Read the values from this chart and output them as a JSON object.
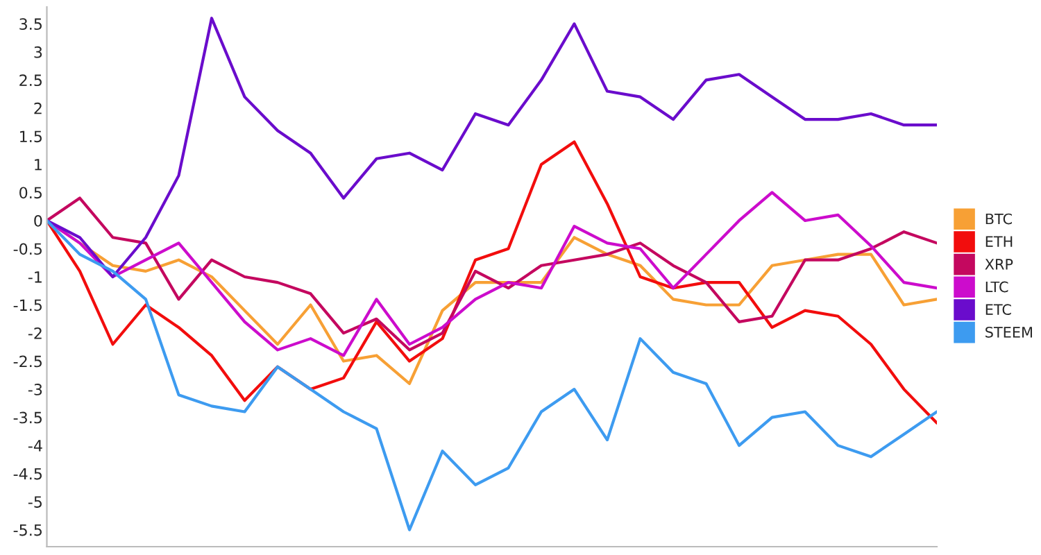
{
  "chart_data": {
    "type": "line",
    "categories": [
      null,
      null,
      null,
      null,
      null,
      null,
      null,
      null,
      null,
      null,
      null,
      null,
      null,
      null,
      null,
      null,
      null,
      null,
      null,
      null,
      null,
      null,
      null,
      null,
      null,
      null,
      null,
      null
    ],
    "series": [
      {
        "name": "BTC",
        "color": "#f7a035",
        "values": [
          0,
          -0.4,
          -0.8,
          -0.9,
          -0.7,
          -1.0,
          -1.6,
          -2.2,
          -1.5,
          -2.5,
          -2.4,
          -2.9,
          -1.6,
          -1.1,
          -1.1,
          -1.1,
          -0.3,
          -0.6,
          -0.8,
          -1.4,
          -1.5,
          -1.5,
          -0.8,
          -0.7,
          -0.6,
          -0.6,
          -1.5,
          -1.4
        ]
      },
      {
        "name": "ETH",
        "color": "#f20d0d",
        "values": [
          0,
          -0.9,
          -2.2,
          -1.5,
          -1.9,
          -2.4,
          -3.2,
          -2.6,
          -3.0,
          -2.8,
          -1.8,
          -2.5,
          -2.1,
          -0.7,
          -0.5,
          1.0,
          1.4,
          0.3,
          -1.0,
          -1.2,
          -1.1,
          -1.1,
          -1.9,
          -1.6,
          -1.7,
          -2.2,
          -3.0,
          -3.6
        ]
      },
      {
        "name": "XRP",
        "color": "#c4085f",
        "values": [
          0,
          0.4,
          -0.3,
          -0.4,
          -1.4,
          -0.7,
          -1.0,
          -1.1,
          -1.3,
          -2.0,
          -1.75,
          -2.3,
          -2.0,
          -0.9,
          -1.2,
          -0.8,
          -0.7,
          -0.6,
          -0.4,
          -0.8,
          -1.1,
          -1.8,
          -1.7,
          -0.7,
          -0.7,
          -0.5,
          -0.2,
          -0.4
        ]
      },
      {
        "name": "LTC",
        "color": "#cc0ccc",
        "values": [
          0,
          -0.4,
          -1.0,
          -0.7,
          -0.4,
          -1.1,
          -1.8,
          -2.3,
          -2.1,
          -2.4,
          -1.4,
          -2.2,
          -1.9,
          -1.4,
          -1.1,
          -1.2,
          -0.1,
          -0.4,
          -0.5,
          -1.2,
          -0.6,
          0,
          0.5,
          0,
          0.1,
          -0.45,
          -1.1,
          -1.2
        ]
      },
      {
        "name": "ETC",
        "color": "#6a0ccc",
        "values": [
          0,
          -0.3,
          -1.0,
          -0.3,
          0.8,
          3.6,
          2.2,
          1.6,
          1.2,
          0.4,
          1.1,
          1.2,
          0.9,
          1.9,
          1.7,
          2.5,
          3.5,
          2.3,
          2.2,
          1.8,
          2.5,
          2.6,
          2.2,
          1.8,
          1.8,
          1.9,
          1.7,
          1.7
        ]
      },
      {
        "name": "STEEM",
        "color": "#3d9bf0",
        "values": [
          0,
          -0.6,
          -0.9,
          -1.4,
          -3.1,
          -3.3,
          -3.4,
          -2.6,
          -3.0,
          -3.4,
          -3.7,
          -5.5,
          -4.1,
          -4.7,
          -4.4,
          -3.4,
          -3.0,
          -3.9,
          -2.1,
          -2.7,
          -2.9,
          -4.0,
          -3.5,
          -3.4,
          -4.0,
          -4.2,
          -3.8,
          -3.4
        ]
      }
    ],
    "ylim": [
      -5.8,
      3.8
    ],
    "yticks": [
      -5.5,
      -5,
      -4.5,
      -4,
      -3.5,
      -3,
      -2.5,
      -2,
      -1.5,
      -1,
      -0.5,
      0,
      0.5,
      1,
      1.5,
      2,
      2.5,
      3,
      3.5
    ],
    "grid": false,
    "legend": "right",
    "tick_labels": "y"
  }
}
